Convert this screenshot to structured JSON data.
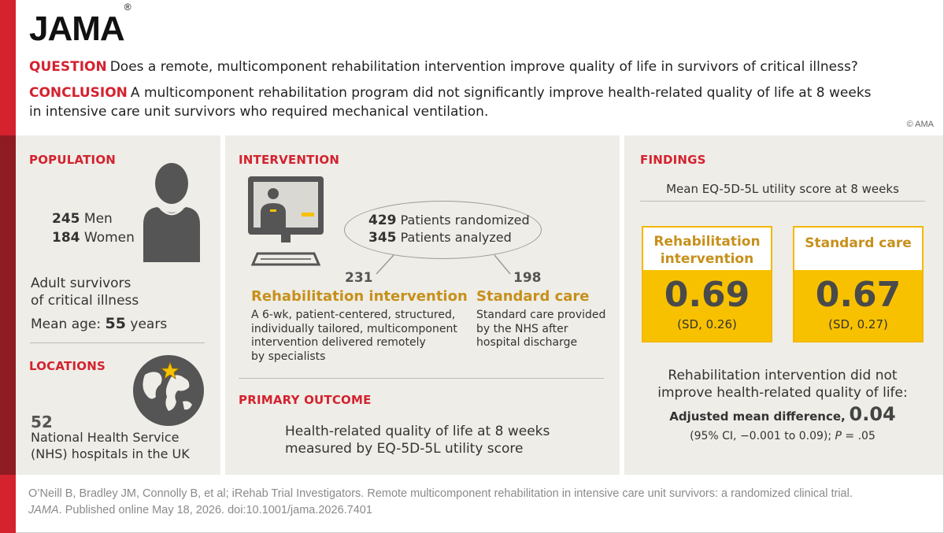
{
  "header": {
    "logo": "JAMA",
    "logo_mark": "®",
    "question_tag": "QUESTION",
    "question_text": "Does a remote, multicomponent rehabilitation intervention improve quality of life in survivors of critical illness?",
    "conclusion_tag": "CONCLUSION",
    "conclusion_line1": "A multicomponent rehabilitation program did not significantly improve health-related quality of life at 8 weeks",
    "conclusion_line2": "in intensive care unit survivors who required mechanical ventilation.",
    "copyright": "© AMA"
  },
  "population": {
    "title": "POPULATION",
    "men_count": "245",
    "men_label": "Men",
    "women_count": "184",
    "women_label": "Women",
    "desc_line1": "Adult survivors",
    "desc_line2": "of critical illness",
    "mean_age_label": "Mean age:",
    "mean_age_value": "55",
    "mean_age_unit": "years"
  },
  "locations": {
    "title": "LOCATIONS",
    "count": "52",
    "line1": "National Health Service",
    "line2": "(NHS) hospitals in the UK"
  },
  "intervention": {
    "title": "INTERVENTION",
    "randomized_count": "429",
    "randomized_label": "Patients randomized",
    "analyzed_count": "345",
    "analyzed_label": "Patients analyzed",
    "rehab_count": "231",
    "rehab_title": "Rehabilitation intervention",
    "rehab_desc": [
      "A 6-wk, patient-centered, structured,",
      "individually tailored, multicomponent",
      "intervention delivered remotely",
      "by specialists"
    ],
    "standard_count": "198",
    "standard_title": "Standard care",
    "standard_desc": [
      "Standard care provided",
      "by the NHS after",
      "hospital discharge"
    ]
  },
  "primary_outcome": {
    "title": "PRIMARY OUTCOME",
    "line1": "Health-related quality of life at 8 weeks",
    "line2": "measured by EQ-5D-5L utility score"
  },
  "findings": {
    "title": "FINDINGS",
    "subtitle": "Mean EQ-5D-5L utility score at 8 weeks",
    "rehab_label_line1": "Rehabilitation",
    "rehab_label_line2": "intervention",
    "rehab_value": "0.69",
    "rehab_sd": "(SD, 0.26)",
    "standard_label": "Standard care",
    "standard_value": "0.67",
    "standard_sd": "(SD, 0.27)",
    "summary_line1": "Rehabilitation intervention did not",
    "summary_line2": "improve health-related quality of life:",
    "adj_label": "Adjusted mean difference,",
    "adj_value": "0.04",
    "ci_text": "(95% CI, −0.001 to 0.09);",
    "p_label": "P",
    "p_value": "= .05"
  },
  "footer": {
    "citation_line1": "O’Neill B, Bradley JM, Connolly B, et al; iRehab Trial Investigators. Remote multicomponent rehabilitation in intensive care unit survivors: a randomized clinical trial.",
    "journal": "JAMA",
    "citation_line2": ". Published online May 18, 2026. doi:10.1001/jama.2026.7401"
  },
  "colors": {
    "accent_red": "#d4222f",
    "gold": "#c7901b",
    "score_fill": "#f8c100",
    "panel_bg": "#eeede7"
  }
}
